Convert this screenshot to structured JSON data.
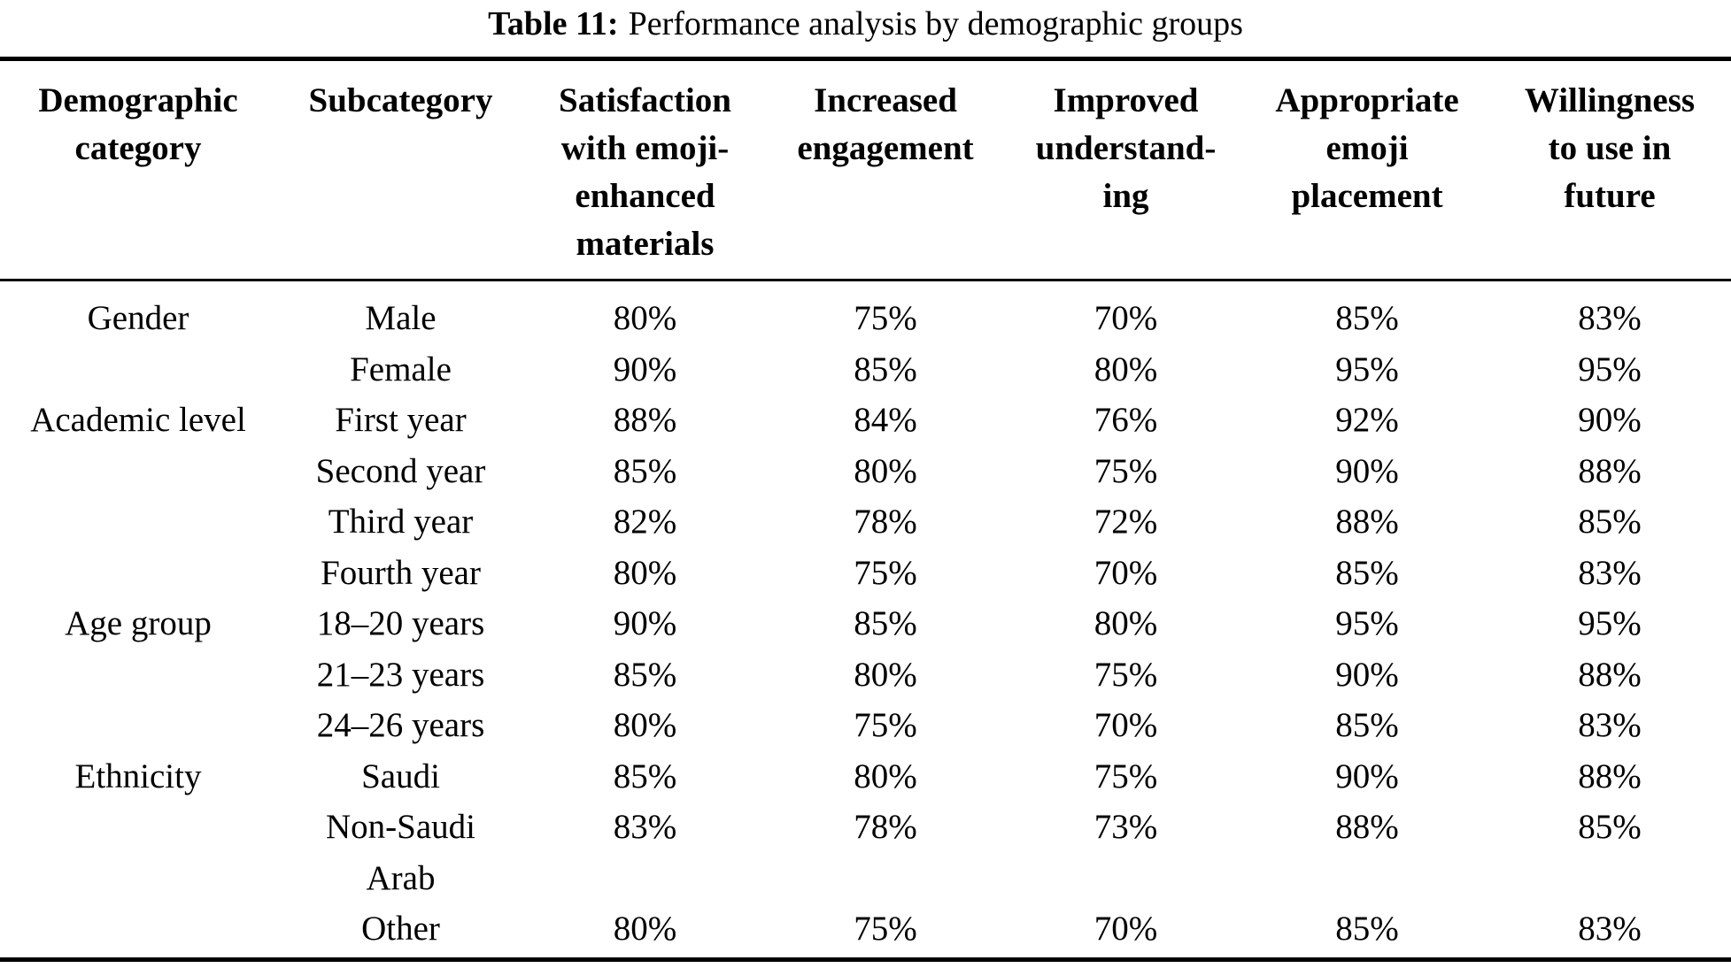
{
  "colors": {
    "background": "#ffffff",
    "text": "#000000",
    "rule": "#000000"
  },
  "caption": {
    "label": "Table 11:",
    "text": "Performance analysis by demographic groups"
  },
  "table": {
    "columns": [
      {
        "id": "demographic-category",
        "label": "Demographic\ncategory"
      },
      {
        "id": "subcategory",
        "label": "Subcategory"
      },
      {
        "id": "satisfaction-emoji-materials",
        "label": "Satisfaction\nwith emoji-\nenhanced\nmaterials"
      },
      {
        "id": "increased-engagement",
        "label": "Increased\nengagement"
      },
      {
        "id": "improved-understanding",
        "label": "Improved\nunderstand-\ning"
      },
      {
        "id": "appropriate-emoji-placement",
        "label": "Appropriate\nemoji\nplacement"
      },
      {
        "id": "willingness-future",
        "label": "Willingness\nto use in\nfuture"
      }
    ],
    "rows": [
      [
        "Gender",
        "Male",
        "80%",
        "75%",
        "70%",
        "85%",
        "83%"
      ],
      [
        "",
        "Female",
        "90%",
        "85%",
        "80%",
        "95%",
        "95%"
      ],
      [
        "Academic level",
        "First year",
        "88%",
        "84%",
        "76%",
        "92%",
        "90%"
      ],
      [
        "",
        "Second year",
        "85%",
        "80%",
        "75%",
        "90%",
        "88%"
      ],
      [
        "",
        "Third year",
        "82%",
        "78%",
        "72%",
        "88%",
        "85%"
      ],
      [
        "",
        "Fourth year",
        "80%",
        "75%",
        "70%",
        "85%",
        "83%"
      ],
      [
        "Age group",
        "18–20 years",
        "90%",
        "85%",
        "80%",
        "95%",
        "95%"
      ],
      [
        "",
        "21–23 years",
        "85%",
        "80%",
        "75%",
        "90%",
        "88%"
      ],
      [
        "",
        "24–26 years",
        "80%",
        "75%",
        "70%",
        "85%",
        "83%"
      ],
      [
        "Ethnicity",
        "Saudi",
        "85%",
        "80%",
        "75%",
        "90%",
        "88%"
      ],
      [
        "",
        "Non-Saudi\nArab",
        "83%",
        "78%",
        "73%",
        "88%",
        "85%"
      ],
      [
        "",
        "Other",
        "80%",
        "75%",
        "70%",
        "85%",
        "83%"
      ]
    ]
  }
}
